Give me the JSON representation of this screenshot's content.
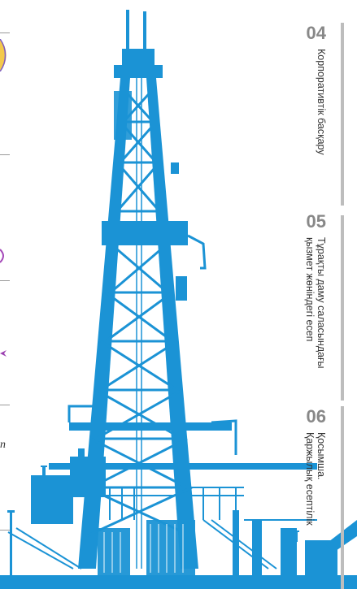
{
  "colors": {
    "rig": "#1b93d5",
    "rule": "#9a9a9a",
    "tab_bar": "#bdbdbd",
    "number": "#888888"
  },
  "sections": [
    {
      "number": "04",
      "label_lines": [
        "Корпоративтік басқару"
      ]
    },
    {
      "number": "05",
      "label_lines": [
        "Тұрақты даму саласындағы",
        "қызмет жөніндегі есеп"
      ]
    },
    {
      "number": "06",
      "label_lines": [
        "Қосымша.",
        "Қаржылық есептілік"
      ]
    }
  ],
  "edge_fragment": {
    "text": "n"
  },
  "illustration": {
    "name": "drilling-rig-icon"
  }
}
